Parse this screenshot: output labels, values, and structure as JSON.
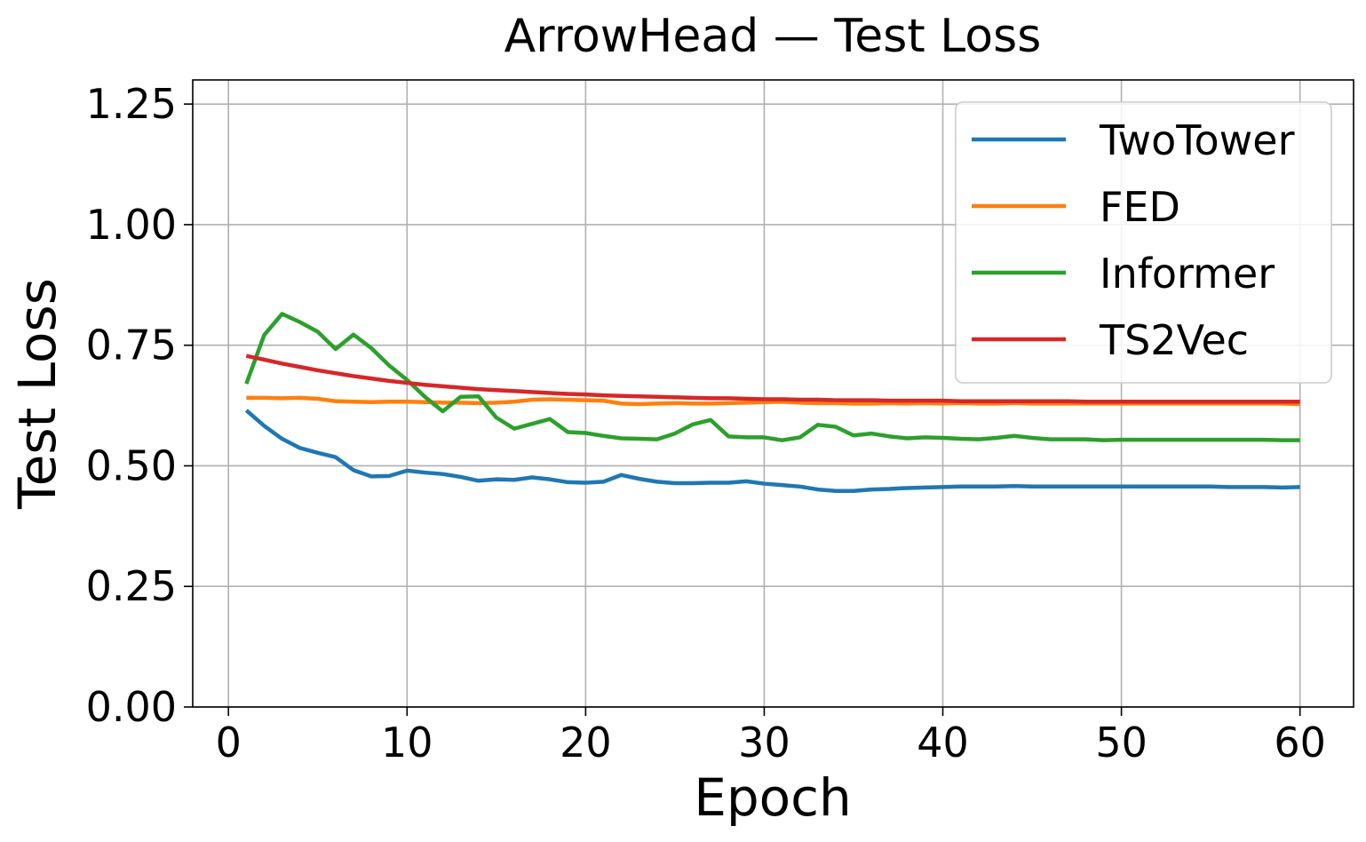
{
  "chart_data": {
    "type": "line",
    "title": "ArrowHead — Test Loss",
    "xlabel": "Epoch",
    "ylabel": "Test Loss",
    "xlim": [
      -2,
      63
    ],
    "ylim": [
      0,
      1.3
    ],
    "xticks": [
      0,
      10,
      20,
      30,
      40,
      50,
      60
    ],
    "yticks": [
      0.0,
      0.25,
      0.5,
      0.75,
      1.0,
      1.25
    ],
    "xtick_labels": [
      "0",
      "10",
      "20",
      "30",
      "40",
      "50",
      "60"
    ],
    "ytick_labels": [
      "0.00",
      "0.25",
      "0.50",
      "0.75",
      "1.00",
      "1.25"
    ],
    "grid": true,
    "legend_position": "top-right",
    "x": [
      1,
      2,
      3,
      4,
      5,
      6,
      7,
      8,
      9,
      10,
      11,
      12,
      13,
      14,
      15,
      16,
      17,
      18,
      19,
      20,
      21,
      22,
      23,
      24,
      25,
      26,
      27,
      28,
      29,
      30,
      31,
      32,
      33,
      34,
      35,
      36,
      37,
      38,
      39,
      40,
      41,
      42,
      43,
      44,
      45,
      46,
      47,
      48,
      49,
      50,
      51,
      52,
      53,
      54,
      55,
      56,
      57,
      58,
      59,
      60
    ],
    "series": [
      {
        "name": "TwoTower",
        "color": "#1f77b4",
        "values": [
          0.615,
          0.583,
          0.556,
          0.537,
          0.527,
          0.518,
          0.491,
          0.478,
          0.479,
          0.49,
          0.486,
          0.483,
          0.477,
          0.469,
          0.472,
          0.471,
          0.476,
          0.472,
          0.466,
          0.465,
          0.467,
          0.481,
          0.473,
          0.467,
          0.464,
          0.464,
          0.465,
          0.465,
          0.468,
          0.463,
          0.46,
          0.457,
          0.451,
          0.448,
          0.448,
          0.451,
          0.452,
          0.454,
          0.455,
          0.456,
          0.457,
          0.457,
          0.457,
          0.458,
          0.457,
          0.457,
          0.457,
          0.457,
          0.457,
          0.457,
          0.457,
          0.457,
          0.457,
          0.457,
          0.457,
          0.456,
          0.456,
          0.456,
          0.455,
          0.456
        ]
      },
      {
        "name": "FED",
        "color": "#ff7f0e",
        "values": [
          0.641,
          0.641,
          0.64,
          0.641,
          0.639,
          0.634,
          0.633,
          0.632,
          0.633,
          0.633,
          0.632,
          0.631,
          0.631,
          0.63,
          0.631,
          0.633,
          0.637,
          0.638,
          0.637,
          0.636,
          0.635,
          0.629,
          0.628,
          0.629,
          0.63,
          0.629,
          0.629,
          0.63,
          0.631,
          0.632,
          0.633,
          0.631,
          0.63,
          0.63,
          0.629,
          0.629,
          0.63,
          0.629,
          0.63,
          0.629,
          0.63,
          0.629,
          0.629,
          0.63,
          0.629,
          0.629,
          0.629,
          0.629,
          0.629,
          0.629,
          0.629,
          0.629,
          0.629,
          0.629,
          0.629,
          0.629,
          0.629,
          0.629,
          0.629,
          0.628
        ]
      },
      {
        "name": "Informer",
        "color": "#2ca02c",
        "values": [
          0.67,
          0.771,
          0.815,
          0.798,
          0.778,
          0.742,
          0.772,
          0.744,
          0.708,
          0.678,
          0.643,
          0.613,
          0.643,
          0.644,
          0.6,
          0.577,
          0.587,
          0.597,
          0.57,
          0.568,
          0.562,
          0.557,
          0.556,
          0.555,
          0.567,
          0.586,
          0.595,
          0.561,
          0.559,
          0.559,
          0.553,
          0.559,
          0.585,
          0.581,
          0.563,
          0.567,
          0.561,
          0.557,
          0.559,
          0.558,
          0.556,
          0.555,
          0.558,
          0.562,
          0.558,
          0.555,
          0.555,
          0.555,
          0.553,
          0.554,
          0.554,
          0.554,
          0.554,
          0.554,
          0.554,
          0.554,
          0.554,
          0.554,
          0.553,
          0.553
        ]
      },
      {
        "name": "TS2Vec",
        "color": "#d62728",
        "values": [
          0.728,
          0.72,
          0.712,
          0.705,
          0.698,
          0.692,
          0.686,
          0.681,
          0.676,
          0.672,
          0.668,
          0.665,
          0.662,
          0.659,
          0.657,
          0.655,
          0.653,
          0.651,
          0.649,
          0.648,
          0.646,
          0.645,
          0.644,
          0.643,
          0.642,
          0.641,
          0.64,
          0.64,
          0.639,
          0.638,
          0.638,
          0.637,
          0.637,
          0.636,
          0.636,
          0.636,
          0.635,
          0.635,
          0.635,
          0.635,
          0.634,
          0.634,
          0.634,
          0.634,
          0.634,
          0.634,
          0.634,
          0.633,
          0.633,
          0.633,
          0.633,
          0.633,
          0.633,
          0.633,
          0.633,
          0.633,
          0.633,
          0.633,
          0.633,
          0.633
        ]
      }
    ]
  }
}
